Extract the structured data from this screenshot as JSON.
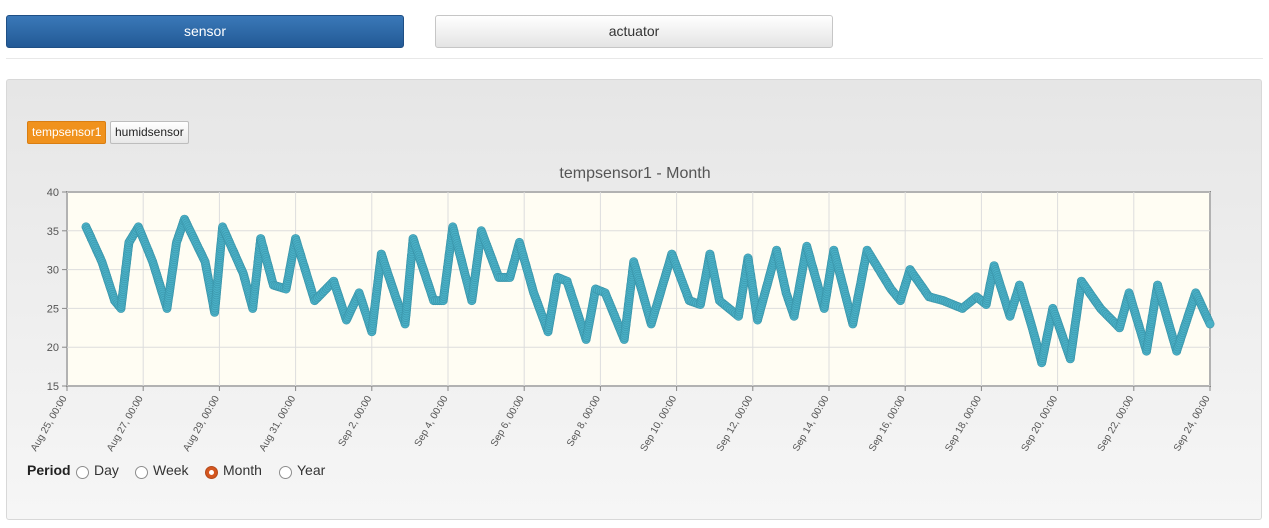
{
  "nav": {
    "sensor_label": "sensor",
    "actuator_label": "actuator"
  },
  "sensor_tabs": [
    {
      "label": "tempsensor1"
    },
    {
      "label": "humidsensor"
    }
  ],
  "period": {
    "label": "Period",
    "options": [
      "Day",
      "Week",
      "Month",
      "Year"
    ],
    "selected": "Month"
  },
  "colors": {
    "accent": "#2b6aa6",
    "series": "#4ab0c6",
    "active_tab": "#f0921d",
    "plot_bg": "#fffdf3"
  },
  "chart_data": {
    "type": "scatter",
    "title": "tempsensor1 - Month",
    "xlabel": "",
    "ylabel": "",
    "ylim": [
      15,
      40
    ],
    "yticks": [
      "15",
      "20",
      "25",
      "30",
      "35",
      "40"
    ],
    "xticks": [
      "Aug 25, 00:00",
      "Aug 27, 00:00",
      "Aug 29, 00:00",
      "Aug 31, 00:00",
      "Sep 2, 00:00",
      "Sep 4, 00:00",
      "Sep 6, 00:00",
      "Sep 8, 00:00",
      "Sep 10, 00:00",
      "Sep 12, 00:00",
      "Sep 14, 00:00",
      "Sep 16, 00:00",
      "Sep 18, 00:00",
      "Sep 20, 00:00",
      "Sep 22, 00:00",
      "Sep 24, 00:00"
    ],
    "grid": true,
    "series": [
      {
        "points": [
          [
            "Aug 25, 12:00",
            35.5
          ],
          [
            "Aug 25, 22:00",
            31.0
          ],
          [
            "Aug 26, 06:00",
            26.0
          ],
          [
            "Aug 26, 10:00",
            25.0
          ],
          [
            "Aug 26, 15:00",
            33.5
          ],
          [
            "Aug 26, 21:00",
            35.5
          ],
          [
            "Aug 27, 06:00",
            31.0
          ],
          [
            "Aug 27, 15:00",
            25.0
          ],
          [
            "Aug 27, 21:00",
            33.5
          ],
          [
            "Aug 28, 02:00",
            36.5
          ],
          [
            "Aug 28, 15:00",
            31.0
          ],
          [
            "Aug 28, 21:00",
            24.5
          ],
          [
            "Aug 29, 02:00",
            35.5
          ],
          [
            "Aug 29, 15:00",
            29.5
          ],
          [
            "Aug 29, 21:00",
            25.0
          ],
          [
            "Aug 30, 02:00",
            34.0
          ],
          [
            "Aug 30, 10:00",
            28.0
          ],
          [
            "Aug 30, 18:00",
            27.5
          ],
          [
            "Aug 31, 00:00",
            34.0
          ],
          [
            "Aug 31, 12:00",
            26.0
          ],
          [
            "Sep 1, 00:00",
            28.5
          ],
          [
            "Sep 1, 08:00",
            23.5
          ],
          [
            "Sep 1, 16:00",
            27.0
          ],
          [
            "Sep 2, 00:00",
            22.0
          ],
          [
            "Sep 2, 06:00",
            32.0
          ],
          [
            "Sep 2, 15:00",
            26.5
          ],
          [
            "Sep 2, 21:00",
            23.0
          ],
          [
            "Sep 3, 02:00",
            34.0
          ],
          [
            "Sep 3, 15:00",
            26.0
          ],
          [
            "Sep 3, 21:00",
            26.0
          ],
          [
            "Sep 4, 03:00",
            35.5
          ],
          [
            "Sep 4, 15:00",
            26.0
          ],
          [
            "Sep 4, 21:00",
            35.0
          ],
          [
            "Sep 5, 08:00",
            29.0
          ],
          [
            "Sep 5, 15:00",
            29.0
          ],
          [
            "Sep 5, 21:00",
            33.5
          ],
          [
            "Sep 6, 06:00",
            27.0
          ],
          [
            "Sep 6, 15:00",
            22.0
          ],
          [
            "Sep 6, 21:00",
            29.0
          ],
          [
            "Sep 7, 03:00",
            28.5
          ],
          [
            "Sep 7, 15:00",
            21.0
          ],
          [
            "Sep 7, 21:00",
            27.5
          ],
          [
            "Sep 8, 03:00",
            27.0
          ],
          [
            "Sep 8, 15:00",
            21.0
          ],
          [
            "Sep 8, 21:00",
            31.0
          ],
          [
            "Sep 9, 08:00",
            23.0
          ],
          [
            "Sep 9, 21:00",
            32.0
          ],
          [
            "Sep 10, 08:00",
            26.0
          ],
          [
            "Sep 10, 15:00",
            25.5
          ],
          [
            "Sep 10, 21:00",
            32.0
          ],
          [
            "Sep 11, 03:00",
            26.0
          ],
          [
            "Sep 11, 15:00",
            24.0
          ],
          [
            "Sep 11, 21:00",
            31.5
          ],
          [
            "Sep 12, 03:00",
            23.5
          ],
          [
            "Sep 12, 15:00",
            32.5
          ],
          [
            "Sep 12, 21:00",
            27.0
          ],
          [
            "Sep 13, 02:00",
            24.0
          ],
          [
            "Sep 13, 10:00",
            33.0
          ],
          [
            "Sep 13, 21:00",
            25.0
          ],
          [
            "Sep 14, 03:00",
            32.5
          ],
          [
            "Sep 14, 15:00",
            23.0
          ],
          [
            "Sep 15, 00:00",
            32.5
          ],
          [
            "Sep 15, 15:00",
            27.5
          ],
          [
            "Sep 15, 21:00",
            26.0
          ],
          [
            "Sep 16, 03:00",
            30.0
          ],
          [
            "Sep 16, 15:00",
            26.5
          ],
          [
            "Sep 17, 00:00",
            26.0
          ],
          [
            "Sep 17, 12:00",
            25.0
          ],
          [
            "Sep 17, 21:00",
            26.5
          ],
          [
            "Sep 18, 03:00",
            25.5
          ],
          [
            "Sep 18, 08:00",
            30.5
          ],
          [
            "Sep 18, 18:00",
            24.0
          ],
          [
            "Sep 19, 00:00",
            28.0
          ],
          [
            "Sep 19, 08:00",
            22.5
          ],
          [
            "Sep 19, 14:00",
            18.0
          ],
          [
            "Sep 19, 21:00",
            25.0
          ],
          [
            "Sep 20, 08:00",
            18.5
          ],
          [
            "Sep 20, 15:00",
            28.5
          ],
          [
            "Sep 21, 03:00",
            25.0
          ],
          [
            "Sep 21, 15:00",
            22.5
          ],
          [
            "Sep 21, 21:00",
            27.0
          ],
          [
            "Sep 22, 08:00",
            19.5
          ],
          [
            "Sep 22, 15:00",
            28.0
          ],
          [
            "Sep 23, 03:00",
            19.5
          ],
          [
            "Sep 23, 15:00",
            27.0
          ],
          [
            "Sep 24, 00:00",
            23.0
          ]
        ]
      }
    ]
  }
}
